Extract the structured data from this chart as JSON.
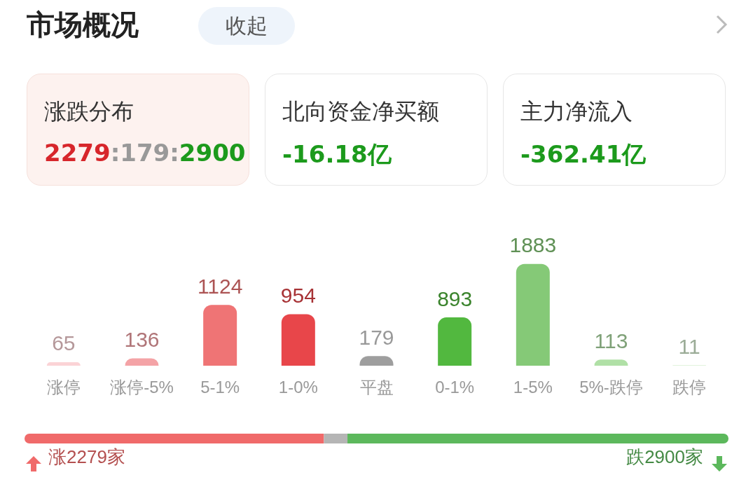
{
  "chart_data": [
    {
      "type": "other",
      "title": "市场概况",
      "annotations": [
        "收起",
        "涨跌分布",
        "2279:179:2900",
        "北向资金净买额",
        "-16.18亿",
        "主力净流入",
        "-362.41亿"
      ]
    },
    {
      "type": "bar",
      "categories": [
        "涨停",
        "涨停-5%",
        "5-1%",
        "1-0%",
        "平盘",
        "0-1%",
        "1-5%",
        "5%-跌停",
        "跌停"
      ],
      "values": [
        65,
        136,
        1124,
        954,
        179,
        893,
        1883,
        113,
        11
      ],
      "colors": [
        "#fbd3d6",
        "#f4a3a6",
        "#ef7475",
        "#e8464a",
        "#9e9e9e",
        "#52b83f",
        "#85c977",
        "#b0e0a6",
        "#d7efd2"
      ],
      "data_labels": true
    },
    {
      "type": "bar",
      "orientation": "horizontal",
      "stacked": true,
      "categories": [
        null
      ],
      "series": [
        {
          "color": "#f06a6a",
          "values": [
            2279
          ],
          "value_labels": [
            "涨2279家"
          ]
        },
        {
          "color": "#b5b5b5",
          "values": [
            179
          ]
        },
        {
          "color": "#5cb85c",
          "values": [
            2900
          ],
          "value_labels": [
            "跌2900家"
          ]
        }
      ]
    }
  ]
}
